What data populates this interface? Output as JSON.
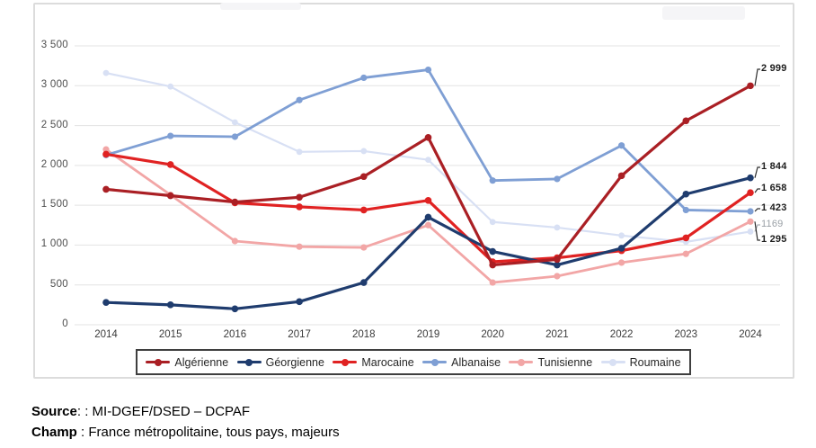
{
  "chart_data": {
    "type": "line",
    "x": [
      2014,
      2015,
      2016,
      2017,
      2018,
      2019,
      2020,
      2021,
      2022,
      2023,
      2024
    ],
    "series": [
      {
        "name": "Algérienne",
        "color": "#AA1F24",
        "values": [
          1700,
          1620,
          1540,
          1600,
          1860,
          2350,
          750,
          820,
          1870,
          2560,
          2999
        ],
        "end_label": "2 999",
        "end_label_muted": false
      },
      {
        "name": "Géorgienne",
        "color": "#1F3C6E",
        "values": [
          280,
          250,
          200,
          290,
          530,
          1350,
          920,
          750,
          960,
          1640,
          1844
        ],
        "end_label": "1 844",
        "end_label_muted": false
      },
      {
        "name": "Marocaine",
        "color": "#E02222",
        "values": [
          2140,
          2010,
          1530,
          1480,
          1440,
          1560,
          790,
          840,
          930,
          1090,
          1658
        ],
        "end_label": "1 658",
        "end_label_muted": false
      },
      {
        "name": "Albanaise",
        "color": "#7F9FD4",
        "values": [
          2130,
          2370,
          2360,
          2820,
          3100,
          3200,
          1810,
          1830,
          2250,
          1440,
          1423
        ],
        "end_label": "1 423",
        "end_label_muted": false
      },
      {
        "name": "Tunisienne",
        "color": "#F2A6A6",
        "values": [
          2200,
          1630,
          1050,
          980,
          970,
          1250,
          530,
          610,
          780,
          890,
          1295
        ],
        "end_label": "1 295",
        "end_label_muted": false
      },
      {
        "name": "Roumaine",
        "color": "#D8E0F4",
        "values": [
          3160,
          2990,
          2540,
          2170,
          2180,
          2070,
          1290,
          1220,
          1120,
          1040,
          1169
        ],
        "end_label": "1169",
        "end_label_muted": true
      }
    ],
    "title": "",
    "xlabel": "",
    "ylabel": "",
    "ylim": [
      0,
      3500
    ],
    "ytick_step": 500,
    "ytick_labels": [
      "0",
      "500",
      "1 000",
      "1 500",
      "2 000",
      "2 500",
      "3 000",
      "3 500"
    ],
    "grid": true,
    "legend_position": "bottom"
  },
  "footer": {
    "source_label": "Source",
    "source_text": ": : MI-DGEF/DSED – DCPAF",
    "champ_label": "Champ",
    "champ_text": " : France métropolitaine, tous pays, majeurs"
  }
}
